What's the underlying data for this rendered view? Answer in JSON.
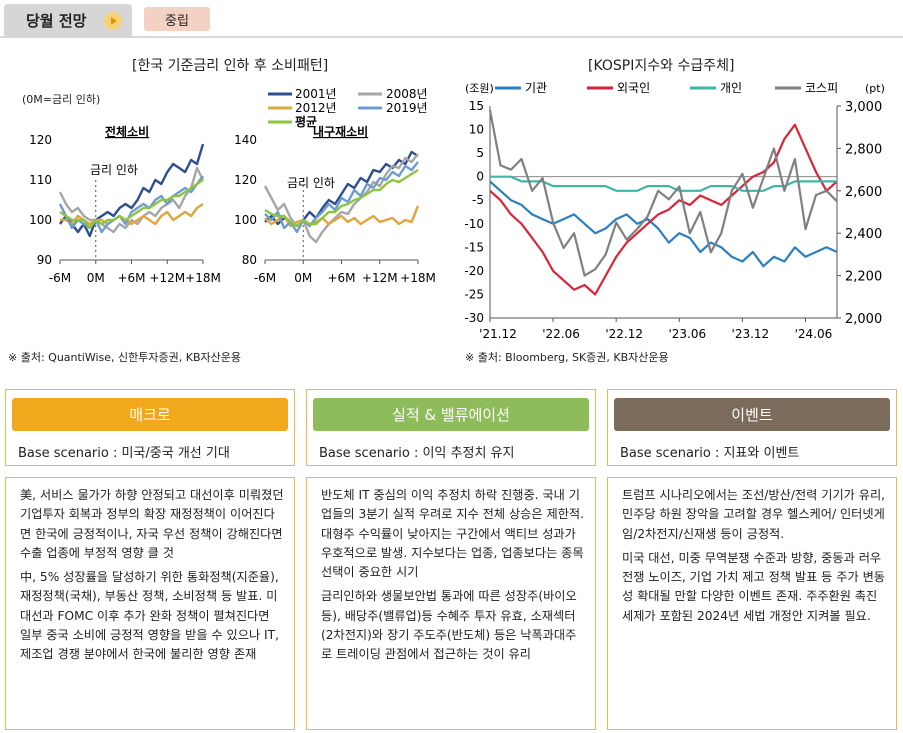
{
  "header": {
    "tab_title": "당월 전망",
    "badge": "중립"
  },
  "chart_left": {
    "title": "[한국 기준금리 인하 후 소비패턴]",
    "unit_note": "(0M=금리 인하)",
    "legend": [
      "2001년",
      "2008년",
      "2012년",
      "2019년",
      "평균"
    ],
    "source": "※ 출처: QuantiWise, 신한투자증권, KB자산운용"
  },
  "chart_right": {
    "title": "[KOSPI지수와 수급주체]",
    "left_unit": "(조원)",
    "right_unit": "(pt)",
    "legend": [
      "기관",
      "외국인",
      "개인",
      "코스피"
    ],
    "source": "※ 출처: Bloomberg, SK증권, KB자산운용"
  },
  "chart_data": [
    {
      "type": "line",
      "title": "전체소비",
      "annotation": "금리 인하",
      "x_tick_labels": [
        "-6M",
        "0M",
        "+6M",
        "+12M",
        "+18M"
      ],
      "xlim": [
        -6,
        18
      ],
      "ylim": [
        90,
        120
      ],
      "y_ticks": [
        "90",
        "100",
        "110",
        "120"
      ],
      "series": [
        {
          "name": "2001년",
          "color": "#2e4e91",
          "x": [
            -6,
            -5,
            -4,
            -3,
            -2,
            -1,
            0,
            1,
            2,
            3,
            4,
            5,
            6,
            7,
            8,
            9,
            10,
            11,
            12,
            13,
            14,
            15,
            16,
            17,
            18
          ],
          "y": [
            99,
            101,
            99,
            97,
            99,
            96,
            100,
            101,
            102,
            101,
            103,
            104,
            103,
            105,
            108,
            107,
            110,
            109,
            112,
            114,
            113,
            112,
            115,
            114,
            119
          ]
        },
        {
          "name": "2008년",
          "color": "#a6a6a6",
          "x": [
            -6,
            -5,
            -4,
            -3,
            -2,
            -1,
            0,
            1,
            2,
            3,
            4,
            5,
            6,
            7,
            8,
            9,
            10,
            11,
            12,
            13,
            14,
            15,
            16,
            17,
            18
          ],
          "y": [
            107,
            104,
            102,
            103,
            101,
            100,
            100,
            99,
            98,
            97,
            99,
            98,
            100,
            99,
            101,
            102,
            101,
            103,
            104,
            105,
            103,
            106,
            108,
            113,
            110
          ]
        },
        {
          "name": "2012년",
          "color": "#e1a53f",
          "x": [
            -6,
            -5,
            -4,
            -3,
            -2,
            -1,
            0,
            1,
            2,
            3,
            4,
            5,
            6,
            7,
            8,
            9,
            10,
            11,
            12,
            13,
            14,
            15,
            16,
            17,
            18
          ],
          "y": [
            100,
            100,
            99,
            101,
            100,
            99,
            100,
            100,
            99,
            100,
            101,
            100,
            99,
            100,
            101,
            100,
            99,
            101,
            102,
            100,
            101,
            102,
            101,
            103,
            104
          ]
        },
        {
          "name": "2019년",
          "color": "#6f9ccf",
          "x": [
            -6,
            -5,
            -4,
            -3,
            -2,
            -1,
            0,
            1,
            2,
            3,
            4,
            5,
            6,
            7,
            8,
            9,
            10,
            11,
            12,
            13,
            14,
            15,
            16,
            17,
            18
          ],
          "y": [
            104,
            101,
            98,
            100,
            99,
            98,
            100,
            97,
            99,
            100,
            101,
            99,
            102,
            103,
            104,
            103,
            105,
            106,
            104,
            106,
            107,
            108,
            107,
            109,
            111
          ]
        },
        {
          "name": "평균",
          "color": "#8cc63f",
          "x": [
            -6,
            -5,
            -4,
            -3,
            -2,
            -1,
            0,
            1,
            2,
            3,
            4,
            5,
            6,
            7,
            8,
            9,
            10,
            11,
            12,
            13,
            14,
            15,
            16,
            17,
            18
          ],
          "y": [
            102,
            101,
            100,
            100,
            100,
            98,
            100,
            99,
            100,
            100,
            101,
            100,
            101,
            102,
            103,
            103,
            104,
            105,
            105,
            106,
            106,
            107,
            108,
            109,
            110
          ]
        }
      ]
    },
    {
      "type": "line",
      "title": "내구재소비",
      "annotation": "금리 인하",
      "x_tick_labels": [
        "-6M",
        "0M",
        "+6M",
        "+12M",
        "+18M"
      ],
      "xlim": [
        -6,
        18
      ],
      "ylim": [
        80,
        140
      ],
      "y_ticks": [
        "80",
        "100",
        "120",
        "140"
      ],
      "series": [
        {
          "name": "2001년",
          "color": "#2e4e91",
          "x": [
            -6,
            -5,
            -4,
            -3,
            -2,
            -1,
            0,
            1,
            2,
            3,
            4,
            5,
            6,
            7,
            8,
            9,
            10,
            11,
            12,
            13,
            14,
            15,
            16,
            17,
            18
          ],
          "y": [
            99,
            102,
            98,
            101,
            99,
            97,
            100,
            104,
            101,
            106,
            110,
            108,
            113,
            118,
            116,
            121,
            119,
            125,
            124,
            128,
            126,
            130,
            128,
            134,
            132
          ]
        },
        {
          "name": "2008년",
          "color": "#a6a6a6",
          "x": [
            -6,
            -5,
            -4,
            -3,
            -2,
            -1,
            0,
            1,
            2,
            3,
            4,
            5,
            6,
            7,
            8,
            9,
            10,
            11,
            12,
            13,
            14,
            15,
            16,
            17,
            18
          ],
          "y": [
            117,
            111,
            105,
            108,
            101,
            97,
            100,
            92,
            89,
            94,
            98,
            101,
            104,
            103,
            108,
            111,
            114,
            119,
            117,
            123,
            127,
            126,
            131,
            129,
            133
          ]
        },
        {
          "name": "2012년",
          "color": "#e1a53f",
          "x": [
            -6,
            -5,
            -4,
            -3,
            -2,
            -1,
            0,
            1,
            2,
            3,
            4,
            5,
            6,
            7,
            8,
            9,
            10,
            11,
            12,
            13,
            14,
            15,
            16,
            17,
            18
          ],
          "y": [
            101,
            98,
            100,
            102,
            97,
            99,
            100,
            98,
            99,
            101,
            98,
            100,
            102,
            99,
            101,
            98,
            100,
            102,
            99,
            100,
            101,
            98,
            100,
            99,
            107
          ]
        },
        {
          "name": "2019년",
          "color": "#6f9ccf",
          "x": [
            -6,
            -5,
            -4,
            -3,
            -2,
            -1,
            0,
            1,
            2,
            3,
            4,
            5,
            6,
            7,
            8,
            9,
            10,
            11,
            12,
            13,
            14,
            15,
            16,
            17,
            18
          ],
          "y": [
            103,
            100,
            104,
            96,
            99,
            94,
            100,
            97,
            101,
            104,
            108,
            105,
            111,
            109,
            115,
            112,
            118,
            116,
            121,
            120,
            124,
            122,
            127,
            125,
            129
          ]
        },
        {
          "name": "평균",
          "color": "#8cc63f",
          "x": [
            -6,
            -5,
            -4,
            -3,
            -2,
            -1,
            0,
            1,
            2,
            3,
            4,
            5,
            6,
            7,
            8,
            9,
            10,
            11,
            12,
            13,
            14,
            15,
            16,
            17,
            18
          ],
          "y": [
            105,
            103,
            102,
            102,
            99,
            97,
            100,
            98,
            98,
            101,
            104,
            104,
            107,
            108,
            110,
            111,
            113,
            115,
            115,
            118,
            120,
            119,
            121,
            123,
            125
          ]
        }
      ]
    },
    {
      "type": "line",
      "title": "KOSPI지수와 수급주체",
      "x_tick_labels": [
        "'21.12",
        "'22.06",
        "'22.12",
        "'23.06",
        "'23.12",
        "'24.06"
      ],
      "x_tick_index": [
        0,
        6,
        12,
        18,
        24,
        30
      ],
      "ylim": [
        -30,
        15
      ],
      "y_ticks": [
        "-30",
        "-25",
        "-20",
        "-15",
        "-10",
        "-5",
        "0",
        "5",
        "10",
        "15"
      ],
      "y2lim": [
        2000,
        3000
      ],
      "y2_ticks": [
        "2,000",
        "2,200",
        "2,400",
        "2,600",
        "2,800",
        "3,000"
      ],
      "series": [
        {
          "name": "기관",
          "color": "#2a7fc1",
          "axis": "left",
          "values": [
            -1,
            -3,
            -5,
            -6,
            -8,
            -9,
            -10,
            -9,
            -8,
            -10,
            -12,
            -11,
            -9,
            -8,
            -10,
            -9,
            -11,
            -14,
            -12,
            -13,
            -16,
            -14,
            -15,
            -17,
            -18,
            -16,
            -19,
            -17,
            -18,
            -15,
            -17,
            -16,
            -15,
            -16
          ]
        },
        {
          "name": "외국인",
          "color": "#d9243a",
          "axis": "left",
          "values": [
            -3,
            -5,
            -8,
            -10,
            -13,
            -16,
            -20,
            -22,
            -24,
            -23,
            -25,
            -21,
            -17,
            -14,
            -12,
            -10,
            -8,
            -7,
            -5,
            -6,
            -4,
            -5,
            -6,
            -4,
            -2,
            0,
            1,
            3,
            8,
            11,
            6,
            1,
            -3,
            -1
          ]
        },
        {
          "name": "개인",
          "color": "#3fb4a8",
          "axis": "left",
          "values": [
            0,
            0,
            0,
            -1,
            -1,
            -1,
            -2,
            -2,
            -2,
            -2,
            -2,
            -2,
            -3,
            -3,
            -3,
            -2,
            -2,
            -2,
            -3,
            -3,
            -3,
            -2,
            -2,
            -2,
            -3,
            -3,
            -3,
            -2,
            -2,
            -1,
            -1,
            -1,
            -1,
            -1
          ]
        },
        {
          "name": "코스피",
          "color": "#808080",
          "axis": "right",
          "values": [
            2980,
            2720,
            2700,
            2750,
            2600,
            2660,
            2450,
            2330,
            2400,
            2200,
            2230,
            2300,
            2450,
            2370,
            2420,
            2480,
            2600,
            2560,
            2620,
            2400,
            2500,
            2310,
            2400,
            2600,
            2680,
            2520,
            2660,
            2800,
            2600,
            2750,
            2420,
            2580,
            2600,
            2550
          ]
        }
      ]
    }
  ],
  "cards": [
    {
      "title": "매크로",
      "band_color": "#f2a81d",
      "scenario": "Base scenario : 미국/중국 개선 기대",
      "paragraphs": [
        "美, 서비스 물가가 하향 안정되고 대선이후 미뤄졌던 기업투자 회복과 정부의 확장 재정정책이 이어진다면 한국에 긍정적이나, 자국 우선 정책이 강해진다면 수출 업종에 부정적 영향 클 것",
        "中, 5% 성장률을 달성하기 위한 통화정책(지준율), 재정정책(국채), 부동산 정책, 소비정책 등 발표. 미 대선과 FOMC 이후 추가 완화 정책이 펼쳐진다면 일부 중국 소비에 긍정적 영향을 받을 수 있으나 IT, 제조업 경쟁 분야에서 한국에 불리한 영향 존재"
      ]
    },
    {
      "title": "실적 & 밸류에이션",
      "band_color": "#8fbc5a",
      "scenario": "Base scenario : 이익 추정치 유지",
      "paragraphs": [
        "반도체 IT 중심의 이익 추정치 하락 진행중. 국내 기업들의 3분기 실적 우려로 지수 전체 상승은 제한적. 대형주 수익률이 낮아지는 구간에서 액티브 성과가 우호적으로 발생. 지수보다는 업종, 업종보다는 종목 선택이 중요한 시기",
        "금리인하와 생물보안법 통과에 따른 성장주(바이오 등), 배당주(밸류업)등 수혜주 투자 유효, 소재섹터(2차전지)와 장기 주도주(반도체) 등은 낙폭과대주로 트레이딩 관점에서 접근하는 것이 유리"
      ]
    },
    {
      "title": "이벤트",
      "band_color": "#7a6b5a",
      "scenario": "Base scenario : 지표와 이벤트",
      "paragraphs": [
        "트럼프 시나리오에서는 조선/방산/전력 기기가 유리, 민주당 하원 장악을 고려할 경우 헬스케어/ 인터넷게임/2차전지/신재생 등이 긍정적.",
        "미국 대선, 미중 무역분쟁 수준과 방향, 중동과 러우 전쟁 노이즈, 기업 가치 제고 정책 발표 등 주가 변동성 확대될 만할 다양한 이벤트 존재. 주주환원 촉진 세제가 포함된 2024년 세법 개정안 지켜볼 필요."
      ]
    }
  ]
}
